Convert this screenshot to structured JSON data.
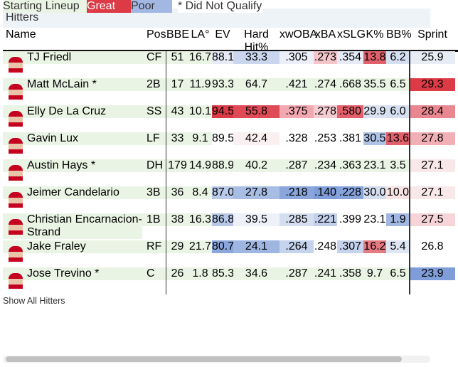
{
  "header": {
    "title": "Hitters"
  },
  "table": {
    "columns": [
      "Name",
      "Pos.",
      "BBE",
      "LA°",
      "EV",
      "Hard Hit%",
      "xwOBA",
      "xBA",
      "xSLG",
      "K%",
      "BB%",
      "Sprint"
    ],
    "rows": [
      {
        "cells": [
          "TJ Friedl",
          "CF",
          "51",
          "16.7",
          "88.1",
          "33.3",
          ".305",
          ".273",
          ".354",
          "13.8",
          "6.2",
          "25.9"
        ],
        "shading": [
          null,
          null,
          null,
          null,
          "#e6ebf5",
          "#c9d6ee",
          "#eceff8",
          "#f4c6cc",
          "#e6ebf5",
          "#e0616b",
          "#d5dff0",
          "#e8ecf5"
        ]
      },
      {
        "cells": [
          "Matt McLain *",
          "2B",
          "17",
          "11.9",
          "93.3",
          "64.7",
          ".421",
          ".274",
          ".668",
          "35.5",
          "6.5",
          "29.3"
        ],
        "shading": [
          null,
          null,
          null,
          null,
          null,
          null,
          null,
          null,
          null,
          null,
          null,
          "#dc3a45"
        ]
      },
      {
        "cells": [
          "Elly De La Cruz",
          "SS",
          "43",
          "10.1",
          "94.5",
          "55.8",
          ".375",
          ".278",
          ".580",
          "29.9",
          "6.0",
          "28.4"
        ],
        "shading": [
          null,
          null,
          null,
          null,
          "#d93a45",
          "#de4a55",
          "#f1a8b0",
          "#f6cdd2",
          "#e3606b",
          "#dbe3f2",
          "#d7e0f1",
          "#e98790"
        ]
      },
      {
        "cells": [
          "Gavin Lux",
          "LF",
          "33",
          "9.1",
          "89.5",
          "42.4",
          ".328",
          ".253",
          ".381",
          "30.5",
          "13.6",
          "27.8"
        ],
        "shading": [
          null,
          null,
          null,
          null,
          "#ffffff",
          "#fbf0f1",
          "#ffffff",
          "#ffffff",
          "#ffffff",
          "#aec2e6",
          "#e0616b",
          "#f1b0b6"
        ]
      },
      {
        "cells": [
          "Austin Hays *",
          "DH",
          "179",
          "14.9",
          "88.9",
          "40.2",
          ".287",
          ".234",
          ".363",
          "23.1",
          "3.5",
          "27.1"
        ],
        "shading": [
          null,
          null,
          null,
          null,
          null,
          null,
          null,
          null,
          null,
          null,
          null,
          "#f8e8ea"
        ]
      },
      {
        "cells": [
          "Jeimer Candelario",
          "3B",
          "36",
          "8.4",
          "87.0",
          "27.8",
          ".218",
          ".140",
          ".228",
          "30.0",
          "10.0",
          "27.1"
        ],
        "shading": [
          null,
          null,
          null,
          null,
          "#b8c9e9",
          "#a8bde4",
          "#8aa6dc",
          "#7f9dd8",
          "#86a3db",
          "#d4def0",
          "#f9e3e5",
          "#f8e8ea"
        ]
      },
      {
        "cells": [
          "Christian Encarnacion-Strand",
          "1B",
          "38",
          "16.3",
          "86.8",
          "39.5",
          ".285",
          ".221",
          ".399",
          "23.1",
          "1.9",
          "27.5"
        ],
        "shading": [
          null,
          null,
          null,
          null,
          "#b6c7e8",
          "#eef1f8",
          "#d4def0",
          "#c2d0ec",
          "#ffffff",
          "#ffffff",
          "#a2b8e3",
          "#f6d4d8"
        ]
      },
      {
        "cells": [
          "Jake Fraley",
          "RF",
          "29",
          "21.7",
          "80.7",
          "24.1",
          ".264",
          ".248",
          ".307",
          "16.2",
          "5.4",
          "26.8"
        ],
        "shading": [
          null,
          null,
          null,
          null,
          "#8aa6dc",
          "#9fb5e2",
          "#c5d3ed",
          "#ffffff",
          "#c6d3ed",
          "#e57a83",
          "#dfe6f3",
          "#ffffff"
        ]
      },
      {
        "cells": [
          "Jose Trevino *",
          "C",
          "26",
          "1.8",
          "85.3",
          "34.6",
          ".287",
          ".241",
          ".358",
          "9.7",
          "6.5",
          "23.9"
        ],
        "shading": [
          null,
          null,
          null,
          null,
          null,
          null,
          null,
          null,
          null,
          null,
          null,
          "#7f9dd8"
        ]
      }
    ]
  },
  "footer": {
    "link": "Show All Hitters"
  },
  "legend": [
    {
      "label": "Starting Lineup",
      "color": "#eaf4e4"
    },
    {
      "label": "Great",
      "color": "#dc3a45"
    },
    {
      "label": "Poor",
      "color": "#a2b8e3"
    },
    {
      "label": "* Did Not Qualify",
      "color": "#ffffff"
    }
  ]
}
